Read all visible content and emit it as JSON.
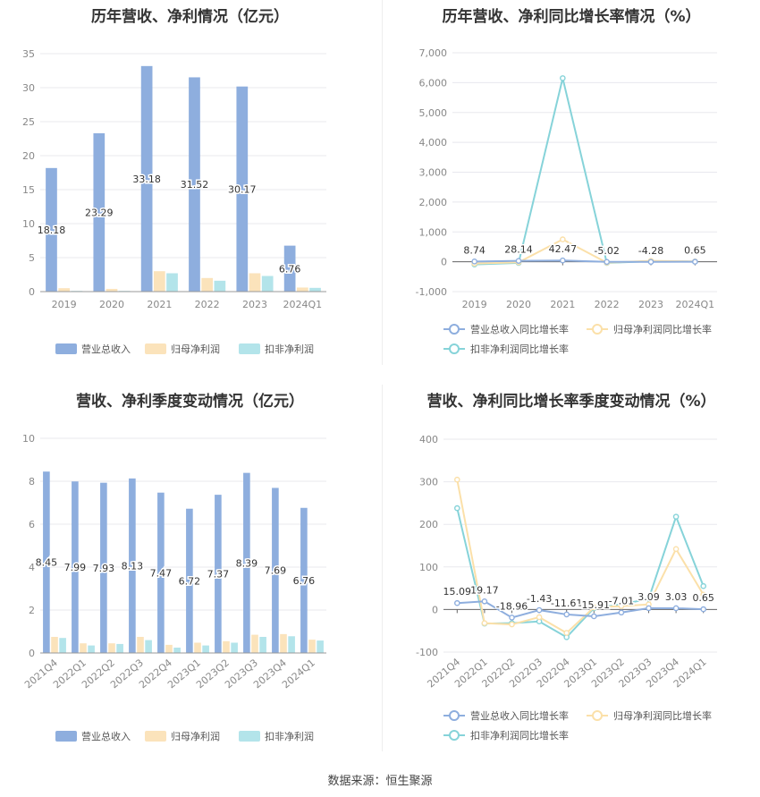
{
  "source_text": "数据来源：恒生聚源",
  "legend_bar": [
    "营业总收入",
    "归母净利润",
    "扣非净利润"
  ],
  "legend_line": [
    "营业总收入同比增长率",
    "归母净利润同比增长率",
    "扣非净利润同比增长率"
  ],
  "colors": {
    "bar": [
      "#8eaede",
      "#fbe3bb",
      "#b3e4ea"
    ],
    "line": [
      "#8eaede",
      "#fbe0a9",
      "#86d3d9"
    ],
    "grid": "#e8e8ee",
    "axis": "#888888"
  },
  "chart_data": [
    {
      "id": "annual_amount",
      "type": "bar",
      "title": "历年营收、净利情况（亿元）",
      "categories": [
        "2019",
        "2020",
        "2021",
        "2022",
        "2023",
        "2024Q1"
      ],
      "yticks": [
        0,
        5,
        10,
        15,
        20,
        25,
        30,
        35
      ],
      "ylim": [
        0,
        35
      ],
      "series": [
        {
          "name": "营业总收入",
          "values": [
            18.18,
            23.29,
            33.18,
            31.52,
            30.17,
            6.76
          ]
        },
        {
          "name": "归母净利润",
          "values": [
            0.5,
            0.4,
            3.0,
            2.0,
            2.7,
            0.6
          ]
        },
        {
          "name": "扣非净利润",
          "values": [
            0.1,
            0.1,
            2.7,
            1.6,
            2.3,
            0.55
          ]
        }
      ],
      "data_labels": [
        "18.18",
        "23.29",
        "33.18",
        "31.52",
        "30.17",
        "6.76"
      ],
      "legend": "bottom"
    },
    {
      "id": "annual_growth",
      "type": "line",
      "title": "历年营收、净利同比增长率情况（%）",
      "categories": [
        "2019",
        "2020",
        "2021",
        "2022",
        "2023",
        "2024Q1"
      ],
      "yticks": [
        -1000,
        0,
        1000,
        2000,
        3000,
        4000,
        5000,
        6000,
        7000
      ],
      "ytick_labels": [
        "-1,000",
        "0",
        "1,000",
        "2,000",
        "3,000",
        "4,000",
        "5,000",
        "6,000",
        "7,000"
      ],
      "ylim": [
        -1000,
        7000
      ],
      "series": [
        {
          "name": "营业总收入同比增长率",
          "values": [
            8.74,
            28.14,
            42.47,
            -5.02,
            -4.28,
            0.65
          ]
        },
        {
          "name": "归母净利润同比增长率",
          "values": [
            -60,
            -20,
            750,
            -30,
            30,
            10
          ]
        },
        {
          "name": "扣非净利润同比增长率",
          "values": [
            -90,
            -40,
            6150,
            -40,
            20,
            5
          ]
        }
      ],
      "data_labels": [
        "8.74",
        "28.14",
        "42.47",
        "-5.02",
        "-4.28",
        "0.65"
      ],
      "legend": "bottom"
    },
    {
      "id": "quarterly_amount",
      "type": "bar",
      "title": "营收、净利季度变动情况（亿元）",
      "categories": [
        "2021Q4",
        "2022Q1",
        "2022Q2",
        "2022Q3",
        "2022Q4",
        "2023Q1",
        "2023Q2",
        "2023Q3",
        "2023Q4",
        "2024Q1"
      ],
      "yticks": [
        0,
        2,
        4,
        6,
        8,
        10
      ],
      "ylim": [
        0,
        10
      ],
      "series": [
        {
          "name": "营业总收入",
          "values": [
            8.45,
            7.99,
            7.93,
            8.13,
            7.47,
            6.72,
            7.37,
            8.39,
            7.69,
            6.76
          ]
        },
        {
          "name": "归母净利润",
          "values": [
            0.75,
            0.45,
            0.45,
            0.75,
            0.38,
            0.48,
            0.55,
            0.85,
            0.88,
            0.62
          ]
        },
        {
          "name": "扣非净利润",
          "values": [
            0.7,
            0.35,
            0.42,
            0.6,
            0.25,
            0.35,
            0.48,
            0.75,
            0.78,
            0.58
          ]
        }
      ],
      "data_labels": [
        "8.45",
        "7.99",
        "7.93",
        "8.13",
        "7.47",
        "6.72",
        "7.37",
        "8.39",
        "7.69",
        "6.76"
      ],
      "legend": "bottom"
    },
    {
      "id": "quarterly_growth",
      "type": "line",
      "title": "营收、净利同比增长率季度变动情况（%）",
      "categories": [
        "2021Q4",
        "2022Q1",
        "2022Q2",
        "2022Q3",
        "2022Q4",
        "2023Q1",
        "2023Q2",
        "2023Q3",
        "2023Q4",
        "2024Q1"
      ],
      "yticks": [
        -100,
        0,
        100,
        200,
        300,
        400
      ],
      "ytick_labels": [
        "-100",
        "0",
        "100",
        "200",
        "300",
        "400"
      ],
      "ylim": [
        -100,
        400
      ],
      "series": [
        {
          "name": "营业总收入同比增长率",
          "values": [
            15.09,
            19.17,
            -18.96,
            -1.43,
            -11.61,
            -15.91,
            -7.01,
            3.09,
            3.03,
            0.65
          ]
        },
        {
          "name": "归母净利润同比增长率",
          "values": [
            305,
            -32,
            -35,
            -18,
            -55,
            5,
            8,
            12,
            142,
            35
          ]
        },
        {
          "name": "扣非净利润同比增长率",
          "values": [
            238,
            -33,
            -32,
            -28,
            -65,
            3,
            12,
            25,
            218,
            55
          ]
        }
      ],
      "data_labels": [
        "15.09",
        "19.17",
        "-18.96",
        "-1.43",
        "-11.61",
        "-15.91",
        "-7.01",
        "3.09",
        "3.03",
        "0.65"
      ],
      "legend": "bottom"
    }
  ]
}
